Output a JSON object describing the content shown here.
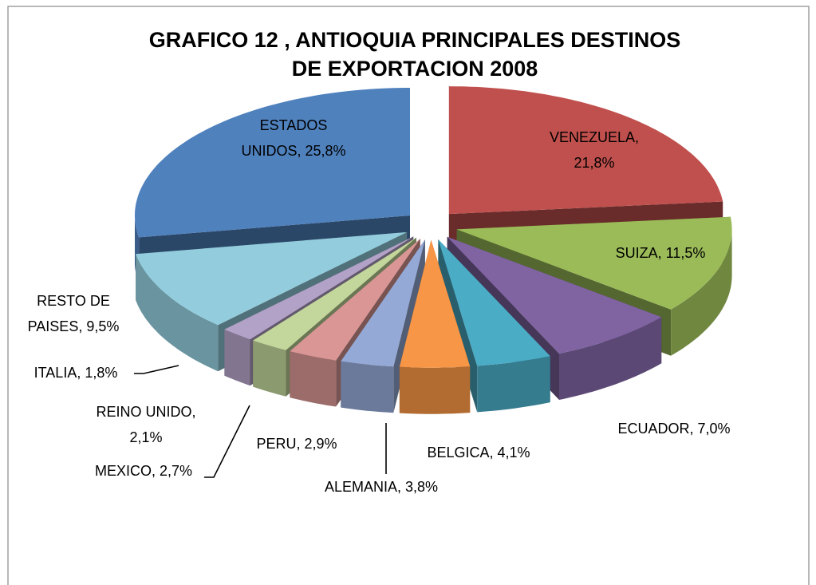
{
  "chart_data": {
    "type": "pie3d",
    "title": "GRAFICO 12 , ANTIOQUIA PRINCIPALES DESTINOS\nDE EXPORTACION 2008",
    "values": [
      25.8,
      21.8,
      11.5,
      7.0,
      4.1,
      3.8,
      2.9,
      2.7,
      2.1,
      1.8,
      9.5
    ],
    "value_labels": [
      "ESTADOS\nUNIDOS, 25,8%",
      "VENEZUELA,\n21,8%",
      "SUIZA, 11,5%",
      "ECUADOR, 7,0%",
      "BELGICA, 4,1%",
      "ALEMANIA, 3,8%",
      "PERU, 2,9%",
      "MEXICO, 2,7%",
      "REINO UNIDO,\n2,1%",
      "ITALIA, 1,8%",
      "RESTO DE\nPAISES, 9,5%"
    ],
    "colors": [
      "#4f81bd",
      "#c0504d",
      "#9bbb59",
      "#8064a2",
      "#4bacc6",
      "#f79646",
      "#95a9d6",
      "#d99694",
      "#c3d69b",
      "#b3a2c7",
      "#93cddd"
    ],
    "exploded": true
  }
}
